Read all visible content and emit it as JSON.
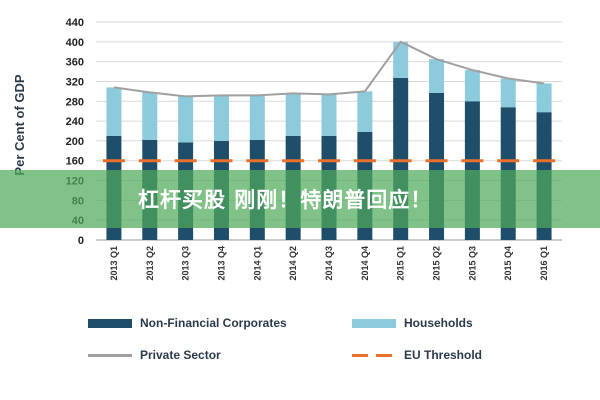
{
  "banner": {
    "text": "杠杆买股 刚刚！特朗普回应！"
  },
  "chart_data": {
    "type": "bar",
    "stacked": true,
    "categories": [
      "2013 Q1",
      "2013 Q2",
      "2013 Q3",
      "2013 Q4",
      "2014 Q1",
      "2014 Q2",
      "2014 Q3",
      "2014 Q4",
      "2015 Q1",
      "2015 Q2",
      "2015 Q3",
      "2015 Q4",
      "2016 Q1"
    ],
    "series": [
      {
        "name": "Non-Financial Corporates",
        "kind": "bar",
        "color": "#1f4e6b",
        "values": [
          210,
          202,
          197,
          200,
          202,
          210,
          210,
          218,
          327,
          297,
          280,
          268,
          258
        ]
      },
      {
        "name": "Households",
        "kind": "bar",
        "color": "#8ccbdc",
        "values": [
          98,
          96,
          93,
          92,
          90,
          86,
          84,
          82,
          73,
          68,
          63,
          58,
          58
        ]
      },
      {
        "name": "Private Sector",
        "kind": "line",
        "color": "#a0a0a0",
        "values": [
          308,
          298,
          290,
          292,
          292,
          296,
          294,
          300,
          400,
          365,
          343,
          326,
          316
        ]
      },
      {
        "name": "EU Threshold",
        "kind": "dashed-line",
        "color": "#e8702a",
        "values": [
          160,
          160,
          160,
          160,
          160,
          160,
          160,
          160,
          160,
          160,
          160,
          160,
          160
        ]
      }
    ],
    "ylabel": "Per Cent of GDP",
    "ylim": [
      0,
      440
    ],
    "yticks": [
      0,
      40,
      80,
      120,
      160,
      200,
      240,
      280,
      320,
      360,
      400,
      440
    ],
    "grid": true,
    "legend": "bottom"
  }
}
